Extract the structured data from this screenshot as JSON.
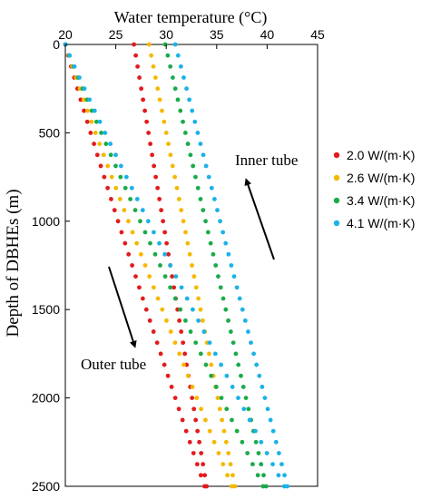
{
  "chart_data": {
    "type": "scatter",
    "xlabel": "Water temperature (°C)",
    "ylabel": "Depth of DBHEs (m)",
    "xlim": [
      20,
      45
    ],
    "ylim": [
      0,
      2500
    ],
    "y_inverted": true,
    "x_axis_position": "top",
    "xticks": [
      "20",
      "25",
      "30",
      "35",
      "40",
      "45"
    ],
    "yticks": [
      "0",
      "500",
      "1000",
      "1500",
      "2000",
      "2500"
    ],
    "grid": false,
    "legend_position": "right",
    "series": [
      {
        "name": "2.0 W/(m·K)",
        "color": "#e31a1c",
        "outer_tube": {
          "depth_start": 0,
          "depth_end": 2500,
          "temp_start": 20.0,
          "temp_end": 33.8
        },
        "inner_tube": {
          "depth_start": 0,
          "depth_end": 2500,
          "temp_start": 26.8,
          "temp_end": 34.0
        }
      },
      {
        "name": "2.6 W/(m·K)",
        "color": "#f5b800",
        "outer_tube": {
          "depth_start": 0,
          "depth_end": 2500,
          "temp_start": 20.0,
          "temp_end": 36.5
        },
        "inner_tube": {
          "depth_start": 0,
          "depth_end": 2500,
          "temp_start": 28.3,
          "temp_end": 36.8
        }
      },
      {
        "name": "3.4 W/(m·K)",
        "color": "#1aab4a",
        "outer_tube": {
          "depth_start": 0,
          "depth_end": 2500,
          "temp_start": 20.0,
          "temp_end": 39.6
        },
        "inner_tube": {
          "depth_start": 0,
          "depth_end": 2500,
          "temp_start": 29.9,
          "temp_end": 39.9
        }
      },
      {
        "name": "4.1 W/(m·K)",
        "color": "#1ab2e8",
        "outer_tube": {
          "depth_start": 0,
          "depth_end": 2500,
          "temp_start": 20.0,
          "temp_end": 41.7
        },
        "inner_tube": {
          "depth_start": 0,
          "depth_end": 2500,
          "temp_start": 30.9,
          "temp_end": 42.0
        }
      }
    ],
    "annotations": [
      {
        "text": "Inner tube",
        "arrow": "up"
      },
      {
        "text": "Outer tube",
        "arrow": "down"
      }
    ]
  }
}
